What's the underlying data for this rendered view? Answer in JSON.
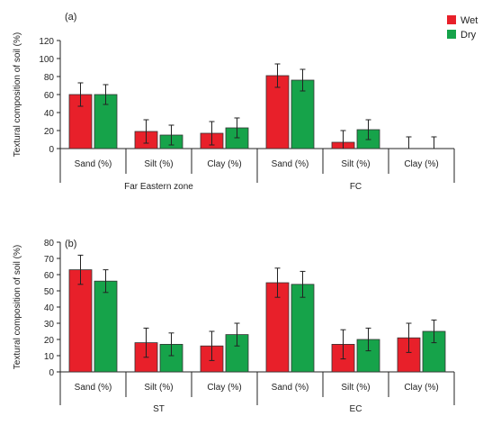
{
  "legend": {
    "items": [
      {
        "label": "Wet",
        "color": "#e8202a"
      },
      {
        "label": "Dry",
        "color": "#16a34a"
      }
    ]
  },
  "chart_data": [
    {
      "type": "bar",
      "panel_label": "(a)",
      "ylabel": "Textural composition of soil (%)",
      "ylim": [
        0,
        120
      ],
      "yticks": [
        0,
        20,
        40,
        60,
        80,
        100,
        120
      ],
      "categories": [
        "Sand (%)",
        "Silt (%)",
        "Clay (%)",
        "Sand (%)",
        "Silt (%)",
        "Clay (%)"
      ],
      "groups": [
        {
          "label": "Far Eastern zone",
          "categories": [
            0,
            1,
            2
          ]
        },
        {
          "label": "FC",
          "categories": [
            3,
            4,
            5
          ]
        }
      ],
      "series": [
        {
          "name": "Wet",
          "color": "#e8202a",
          "values": [
            60,
            19,
            17,
            81,
            7,
            0
          ],
          "errors": [
            13,
            13,
            13,
            13,
            13,
            13
          ]
        },
        {
          "name": "Dry",
          "color": "#16a34a",
          "values": [
            60,
            15,
            23,
            76,
            21,
            0
          ],
          "errors": [
            11,
            11,
            11,
            12,
            11,
            13
          ]
        }
      ]
    },
    {
      "type": "bar",
      "panel_label": "(b)",
      "ylabel": "Textural composition of soil (%)",
      "ylim": [
        0,
        80
      ],
      "yticks": [
        0,
        10,
        20,
        30,
        40,
        50,
        60,
        70,
        80
      ],
      "categories": [
        "Sand (%)",
        "Silt (%)",
        "Clay (%)",
        "Sand (%)",
        "Silt (%)",
        "Clay (%)"
      ],
      "groups": [
        {
          "label": "ST",
          "categories": [
            0,
            1,
            2
          ]
        },
        {
          "label": "EC",
          "categories": [
            3,
            4,
            5
          ]
        }
      ],
      "series": [
        {
          "name": "Wet",
          "color": "#e8202a",
          "values": [
            63,
            18,
            16,
            55,
            17,
            21
          ],
          "errors": [
            9,
            9,
            9,
            9,
            9,
            9
          ]
        },
        {
          "name": "Dry",
          "color": "#16a34a",
          "values": [
            56,
            17,
            23,
            54,
            20,
            25
          ],
          "errors": [
            7,
            7,
            7,
            8,
            7,
            7
          ]
        }
      ]
    }
  ]
}
